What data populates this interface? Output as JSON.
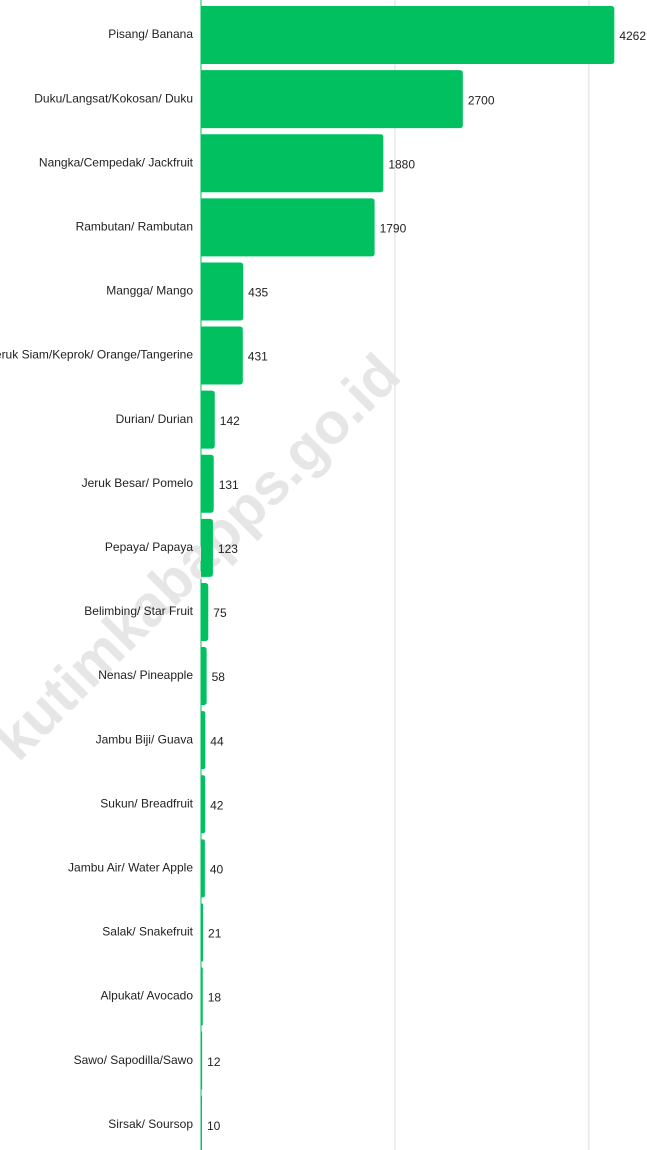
{
  "chart_data": {
    "type": "bar",
    "orientation": "horizontal",
    "watermark": "kutimkabapps.go.id",
    "categories": [
      "Pisang/ Banana",
      "Duku/Langsat/Kokosan/ Duku",
      "Nangka/Cempedak/ Jackfruit",
      "Rambutan/ Rambutan",
      "Mangga/ Mango",
      "Jeruk Siam/Keprok/ Orange/Tangerine",
      "Durian/ Durian",
      "Jeruk Besar/ Pomelo",
      "Pepaya/ Papaya",
      "Belimbing/ Star Fruit",
      "Nenas/ Pineapple",
      "Jambu Biji/ Guava",
      "Sukun/ Breadfruit",
      "Jambu Air/ Water Apple",
      "Salak/ Snakefruit",
      "Alpukat/ Avocado",
      "Sawo/ Sapodilla/Sawo",
      "Sirsak/ Soursop"
    ],
    "values": [
      4262,
      2700,
      1880,
      1790,
      435,
      431,
      142,
      131,
      123,
      75,
      58,
      44,
      42,
      40,
      21,
      18,
      12,
      10
    ],
    "color": "#00c060",
    "xlim": [
      0,
      4300
    ],
    "xticks": [
      0,
      2000,
      4000
    ],
    "grid": true
  }
}
